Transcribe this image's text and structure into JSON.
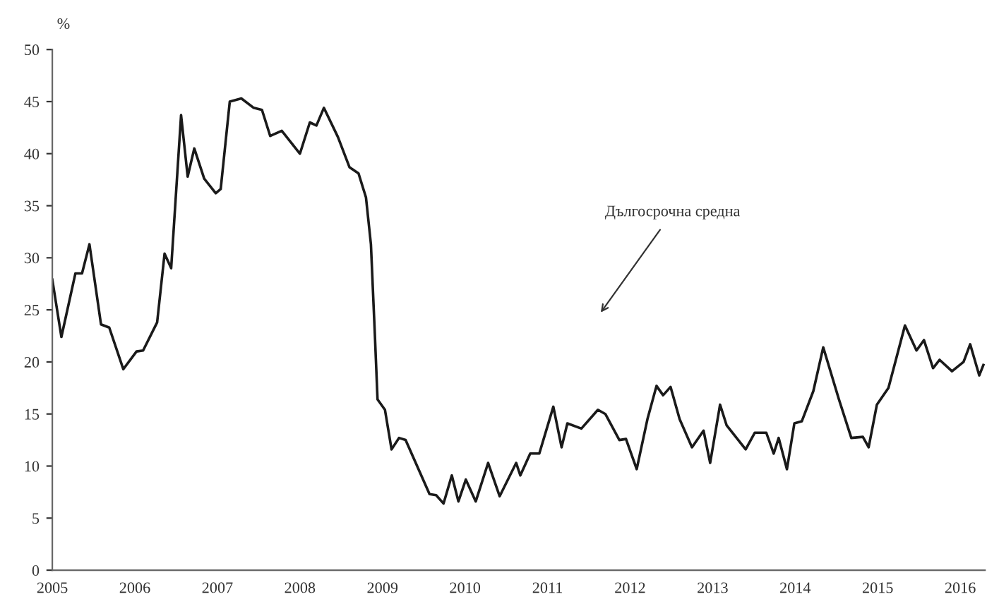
{
  "chart_data": {
    "type": "line",
    "ylabel": "%",
    "x": [
      2005.0,
      2005.11,
      2005.28,
      2005.36,
      2005.45,
      2005.59,
      2005.69,
      2005.86,
      2006.02,
      2006.1,
      2006.27,
      2006.36,
      2006.44,
      2006.56,
      2006.64,
      2006.72,
      2006.84,
      2006.98,
      2007.04,
      2007.15,
      2007.29,
      2007.44,
      2007.54,
      2007.64,
      2007.78,
      2008.0,
      2008.12,
      2008.2,
      2008.29,
      2008.46,
      2008.6,
      2008.71,
      2008.8,
      2008.86,
      2008.91,
      2008.94,
      2009.03,
      2009.11,
      2009.2,
      2009.28,
      2009.57,
      2009.65,
      2009.74,
      2009.84,
      2009.92,
      2010.01,
      2010.13,
      2010.28,
      2010.42,
      2010.62,
      2010.67,
      2010.79,
      2010.9,
      2011.07,
      2011.17,
      2011.24,
      2011.41,
      2011.61,
      2011.7,
      2011.87,
      2011.95,
      2012.08,
      2012.21,
      2012.32,
      2012.4,
      2012.49,
      2012.6,
      2012.75,
      2012.89,
      2012.97,
      2013.09,
      2013.17,
      2013.4,
      2013.51,
      2013.65,
      2013.74,
      2013.8,
      2013.9,
      2013.99,
      2014.08,
      2014.22,
      2014.34,
      2014.53,
      2014.68,
      2014.82,
      2014.89,
      2014.99,
      2015.13,
      2015.33,
      2015.47,
      2015.56,
      2015.67,
      2015.75,
      2015.9,
      2016.04,
      2016.12,
      2016.23,
      2016.28
    ],
    "series": [
      {
        "color": "#1a1a1a",
        "values": [
          27.9,
          22.4,
          28.5,
          28.5,
          31.3,
          23.6,
          23.3,
          19.3,
          21.0,
          21.1,
          23.8,
          30.4,
          29.0,
          43.7,
          37.8,
          40.5,
          37.6,
          36.2,
          36.6,
          45.0,
          45.3,
          44.4,
          44.2,
          41.7,
          42.2,
          40.0,
          43.0,
          42.7,
          44.4,
          41.6,
          38.7,
          38.1,
          35.8,
          31.3,
          22.2,
          16.4,
          15.4,
          11.6,
          12.7,
          12.5,
          7.3,
          7.2,
          6.4,
          9.1,
          6.6,
          8.7,
          6.6,
          10.3,
          7.1,
          10.3,
          9.1,
          11.2,
          11.2,
          15.7,
          11.8,
          14.1,
          13.6,
          15.4,
          15.0,
          12.5,
          12.6,
          9.7,
          14.5,
          17.7,
          16.8,
          17.6,
          14.5,
          11.8,
          13.4,
          10.3,
          15.9,
          13.9,
          11.6,
          13.2,
          13.2,
          11.2,
          12.7,
          9.7,
          14.1,
          14.3,
          17.2,
          21.4,
          16.4,
          12.7,
          12.8,
          11.8,
          15.9,
          17.5,
          23.5,
          21.1,
          22.1,
          19.4,
          20.2,
          19.1,
          20.0,
          21.7,
          18.7,
          19.7
        ]
      }
    ],
    "xlim": [
      2005,
      2016.3
    ],
    "xticks": [
      2005,
      2006,
      2007,
      2008,
      2009,
      2010,
      2011,
      2012,
      2013,
      2014,
      2015,
      2016
    ],
    "ylim": [
      0,
      50
    ],
    "yticks": [
      0,
      5,
      10,
      15,
      20,
      25,
      30,
      35,
      40,
      45,
      50
    ],
    "annotations": [
      "Дългосрочна средна"
    ],
    "grid": false,
    "legend": false,
    "marker": "none",
    "line_style": "solid"
  }
}
